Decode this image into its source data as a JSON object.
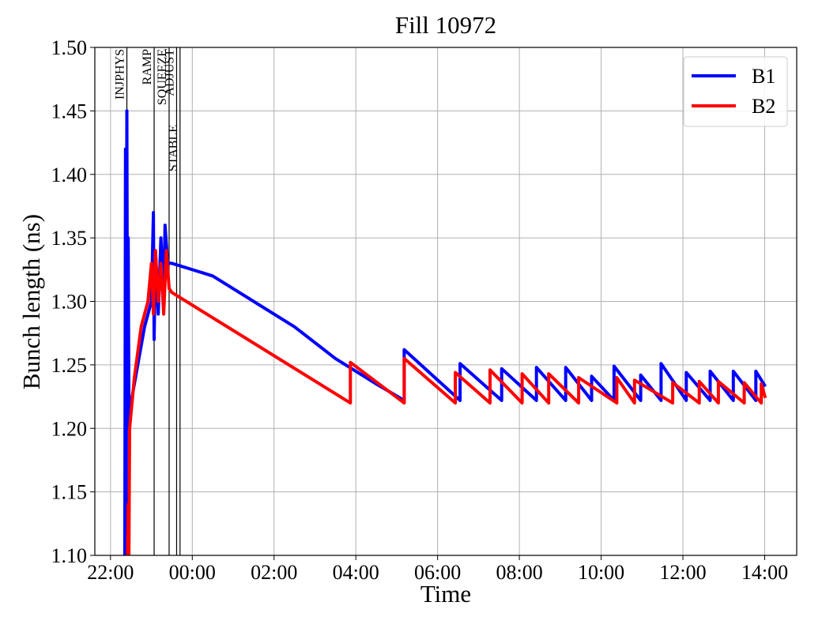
{
  "chart_data": {
    "type": "line",
    "title": "Fill 10972",
    "x_label": "Time",
    "y_label": "Bunch length (ns)",
    "xlim": [
      "21:37",
      "14:47"
    ],
    "ylim": [
      1.1,
      1.5
    ],
    "xticks": [
      "22:00",
      "00:00",
      "02:00",
      "04:00",
      "06:00",
      "08:00",
      "10:00",
      "12:00",
      "14:00"
    ],
    "yticks": [
      {
        "value": 1.1,
        "label": "1.10"
      },
      1.15,
      {
        "value": 1.2,
        "label": "1.20"
      },
      1.25,
      {
        "value": 1.3,
        "label": "1.30"
      },
      1.35,
      {
        "value": 1.4,
        "label": "1.40"
      },
      1.45,
      {
        "value": 1.5,
        "label": "1.50"
      }
    ],
    "grid": true,
    "legend": "upper right",
    "annotations": [
      {
        "label": "INJPHYS",
        "x": "22:24"
      },
      {
        "label": "RAMP",
        "x": "23:04"
      },
      {
        "label": "SQUEEZE",
        "x": "23:26"
      },
      {
        "label": "ADJUST",
        "x": "23:37"
      },
      {
        "label": "STABLE",
        "x": "23:42"
      }
    ],
    "series": [
      {
        "name": "B1",
        "color": "#0000ff",
        "x": [
          "22:21",
          "22:22",
          "22:23",
          "22:24",
          "22:25",
          "22:26",
          "22:27",
          "22:30",
          "22:40",
          "22:50",
          "23:00",
          "23:03",
          "23:04",
          "23:06",
          "23:10",
          "23:14",
          "23:18",
          "23:20",
          "23:24",
          "23:30",
          "00:30",
          "01:30",
          "02:30",
          "03:30",
          "04:30",
          "05:11",
          "05:11",
          "06:33",
          "06:33",
          "07:34",
          "07:34",
          "08:25",
          "08:25",
          "09:08",
          "09:08",
          "09:46",
          "09:46",
          "10:19",
          "10:19",
          "10:58",
          "10:58",
          "11:28",
          "11:28",
          "12:05",
          "12:05",
          "12:40",
          "12:40",
          "13:14",
          "13:14",
          "13:47",
          "13:47",
          "14:01"
        ],
        "values": [
          1.1,
          1.42,
          1.12,
          1.45,
          1.2,
          1.35,
          1.21,
          1.22,
          1.25,
          1.28,
          1.3,
          1.37,
          1.27,
          1.34,
          1.29,
          1.35,
          1.3,
          1.36,
          1.33,
          1.33,
          1.32,
          1.3,
          1.28,
          1.255,
          1.235,
          1.222,
          1.262,
          1.222,
          1.251,
          1.222,
          1.247,
          1.222,
          1.248,
          1.222,
          1.248,
          1.222,
          1.241,
          1.222,
          1.249,
          1.222,
          1.242,
          1.222,
          1.251,
          1.222,
          1.244,
          1.222,
          1.245,
          1.222,
          1.245,
          1.222,
          1.245,
          1.233
        ]
      },
      {
        "name": "B2",
        "color": "#ff0000",
        "x": [
          "22:25",
          "22:26",
          "22:27",
          "22:28",
          "22:35",
          "22:45",
          "22:55",
          "23:00",
          "23:03",
          "23:06",
          "23:10",
          "23:14",
          "23:18",
          "23:22",
          "23:26",
          "23:30",
          "03:52",
          "03:52",
          "05:11",
          "05:11",
          "06:26",
          "06:26",
          "07:17",
          "07:17",
          "08:04",
          "08:04",
          "08:43",
          "08:43",
          "09:27",
          "09:27",
          "10:23",
          "10:23",
          "10:49",
          "10:49",
          "11:45",
          "11:45",
          "12:24",
          "12:24",
          "12:52",
          "12:52",
          "13:30",
          "13:30",
          "13:55",
          "13:55",
          "14:01"
        ],
        "values": [
          1.1,
          1.14,
          1.1,
          1.2,
          1.24,
          1.28,
          1.3,
          1.33,
          1.29,
          1.34,
          1.3,
          1.33,
          1.29,
          1.34,
          1.31,
          1.307,
          1.22,
          1.252,
          1.22,
          1.255,
          1.22,
          1.244,
          1.22,
          1.246,
          1.22,
          1.243,
          1.22,
          1.243,
          1.22,
          1.24,
          1.22,
          1.24,
          1.22,
          1.238,
          1.22,
          1.236,
          1.22,
          1.237,
          1.22,
          1.237,
          1.22,
          1.236,
          1.22,
          1.235,
          1.224
        ]
      }
    ]
  }
}
